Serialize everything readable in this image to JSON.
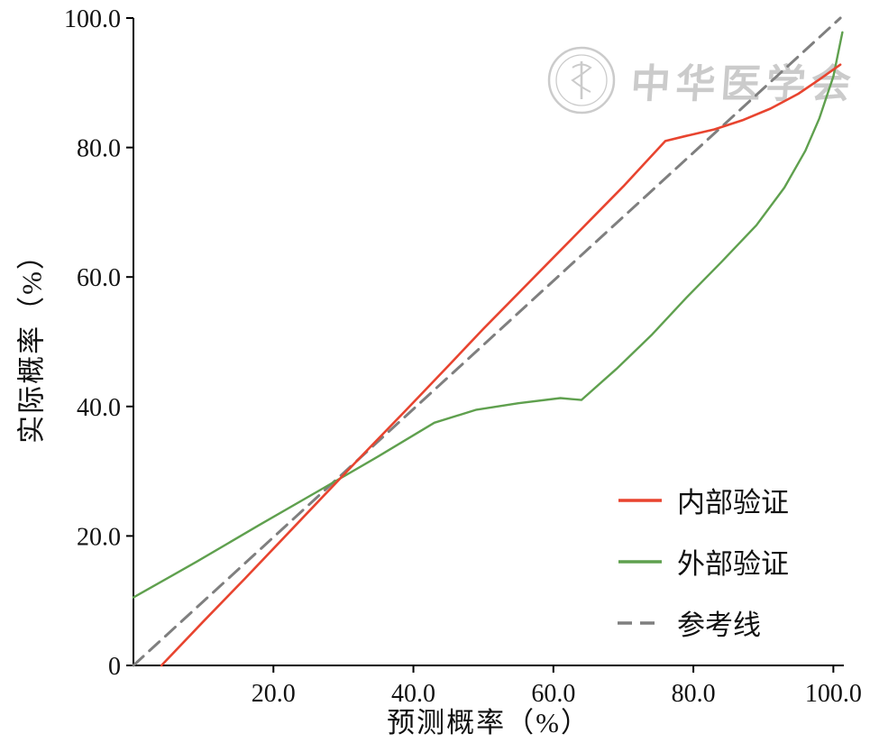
{
  "figure": {
    "background": "#ffffff"
  },
  "watermark": {
    "text": "中华医学会",
    "color": "#c6c6c6"
  },
  "chart_data": {
    "type": "line",
    "title": "",
    "xlabel": "预测概率（%）",
    "ylabel": "实际概率（%）",
    "xlim": [
      0,
      101.5
    ],
    "ylim": [
      0,
      100
    ],
    "grid": false,
    "legend_position": "lower right",
    "axis_color": "#000000",
    "x_tick_values": [
      20,
      40,
      60,
      80,
      100
    ],
    "x_ticks": [
      "20.0",
      "40.0",
      "60.0",
      "80.0",
      "100.0"
    ],
    "y_tick_values": [
      0,
      20,
      40,
      60,
      80,
      100
    ],
    "y_ticks": [
      "0",
      "20.0",
      "40.0",
      "60.0",
      "80.0",
      "100.0"
    ],
    "series": [
      {
        "name": "内部验证",
        "color": "#e8442f",
        "style": "solid",
        "width": 2.6,
        "points": [
          [
            4,
            0
          ],
          [
            10,
            6.8
          ],
          [
            16,
            13.5
          ],
          [
            22,
            20.3
          ],
          [
            27,
            26
          ],
          [
            33,
            32.8
          ],
          [
            39,
            39.5
          ],
          [
            45,
            46.3
          ],
          [
            50,
            52
          ],
          [
            55,
            57.5
          ],
          [
            60,
            63
          ],
          [
            65,
            68.5
          ],
          [
            70,
            74
          ],
          [
            73,
            77.5
          ],
          [
            76,
            81
          ],
          [
            79,
            81.8
          ],
          [
            83,
            82.8
          ],
          [
            87,
            84.2
          ],
          [
            91,
            86
          ],
          [
            95,
            88.3
          ],
          [
            98,
            90.5
          ],
          [
            101,
            92.8
          ]
        ]
      },
      {
        "name": "外部验证",
        "color": "#5fa04e",
        "style": "solid",
        "width": 2.4,
        "points": [
          [
            0,
            10.5
          ],
          [
            9,
            16
          ],
          [
            18,
            21.7
          ],
          [
            27,
            27.3
          ],
          [
            35,
            32.3
          ],
          [
            43,
            37.5
          ],
          [
            49,
            39.5
          ],
          [
            55,
            40.5
          ],
          [
            61,
            41.3
          ],
          [
            64,
            41
          ],
          [
            69,
            45.8
          ],
          [
            74,
            51
          ],
          [
            79,
            56.8
          ],
          [
            84,
            62.3
          ],
          [
            89,
            68
          ],
          [
            93,
            73.8
          ],
          [
            96,
            79.5
          ],
          [
            98,
            84.5
          ],
          [
            100,
            91
          ],
          [
            101.3,
            97.8
          ]
        ]
      },
      {
        "name": "参考线",
        "color": "#7f7f7f",
        "style": "dashed",
        "width": 3,
        "dash": "15 9",
        "points": [
          [
            0,
            0
          ],
          [
            101,
            100
          ]
        ]
      }
    ]
  }
}
